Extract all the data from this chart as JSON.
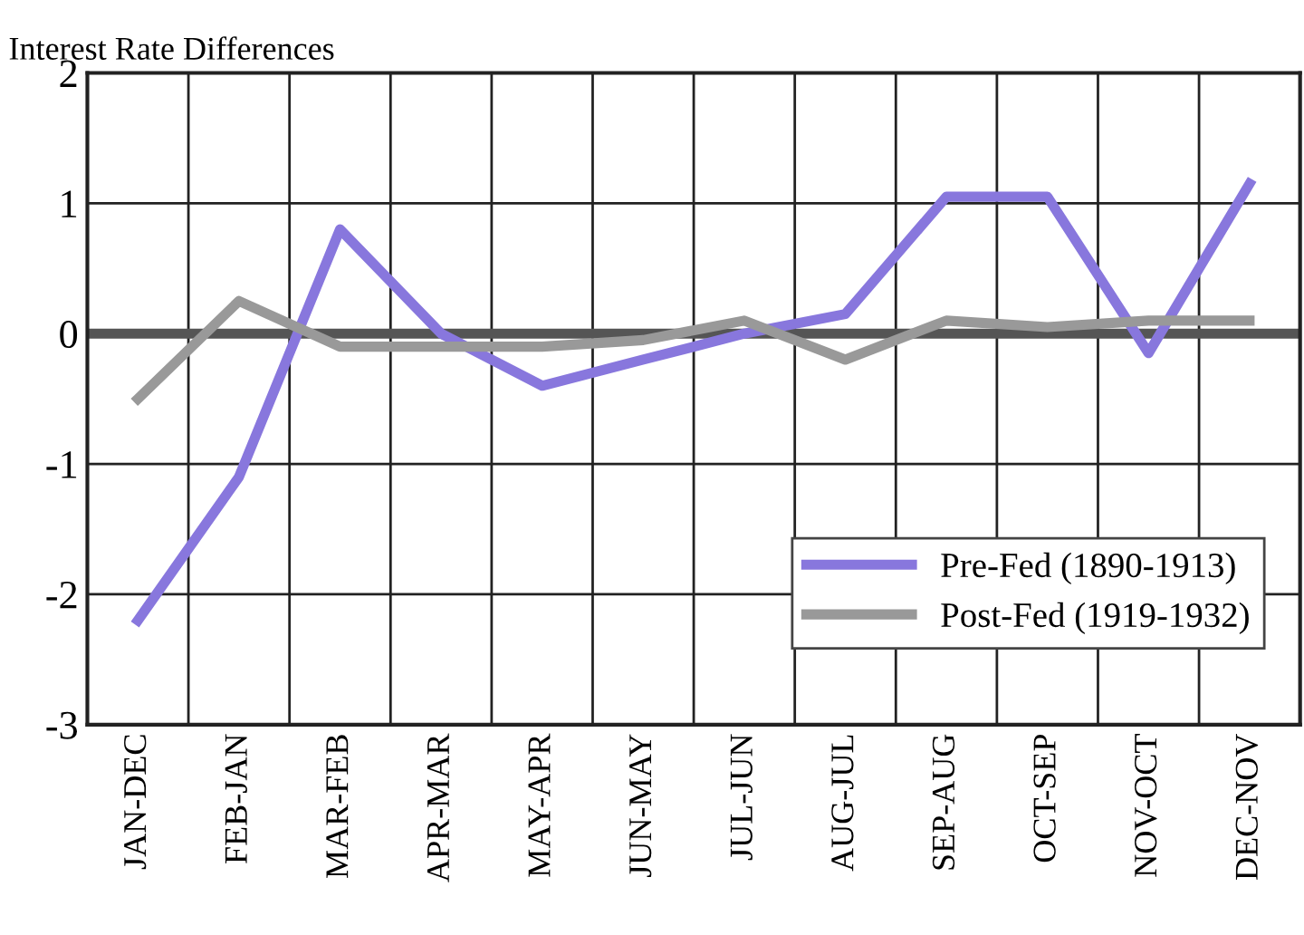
{
  "chart_data": {
    "type": "line",
    "ylabel": "Interest Rate Differences",
    "categories": [
      "JAN-DEC",
      "FEB-JAN",
      "MAR-FEB",
      "APR-MAR",
      "MAY-APR",
      "JUN-MAY",
      "JUL-JUN",
      "AUG-JUL",
      "SEP-AUG",
      "OCT-SEP",
      "NOV-OCT",
      "DEC-NOV"
    ],
    "series": [
      {
        "name": "Pre-Fed (1890-1913)",
        "color": "#8877dd",
        "values": [
          -2.2,
          -1.1,
          0.8,
          0.0,
          -0.4,
          -0.2,
          0.0,
          0.15,
          1.05,
          1.05,
          -0.15,
          1.15
        ]
      },
      {
        "name": "Post-Fed (1919-1932)",
        "color": "#999999",
        "values": [
          -0.5,
          0.25,
          -0.1,
          -0.1,
          -0.1,
          -0.05,
          0.1,
          -0.2,
          0.1,
          0.05,
          0.1,
          0.1
        ]
      }
    ],
    "ylim": [
      -3,
      2
    ],
    "yticks": [
      -3,
      -2,
      -1,
      0,
      1,
      2
    ],
    "ref_lines": [
      {
        "axis": "y",
        "value": 0,
        "color": "#555555"
      }
    ],
    "grid": true,
    "legend": "bottom right",
    "marker": "none",
    "line_style": "solid"
  }
}
